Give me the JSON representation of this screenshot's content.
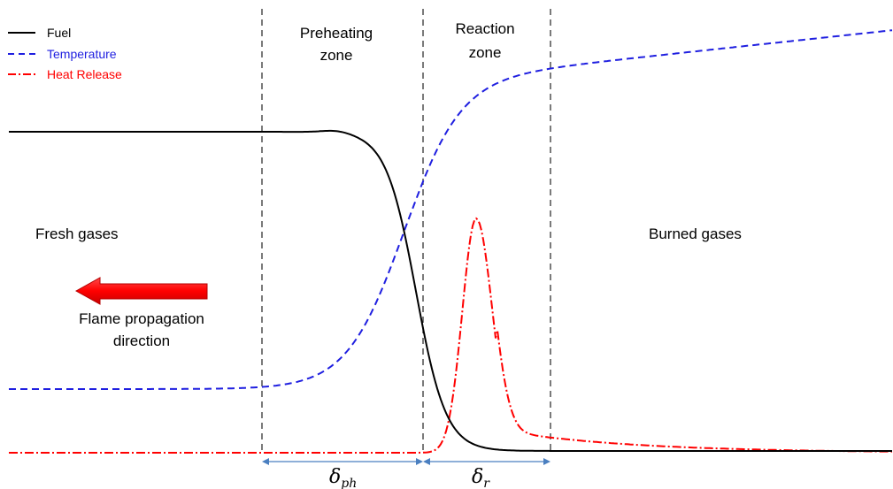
{
  "legend": [
    {
      "label": "Fuel",
      "color": "#000000",
      "style": "solid"
    },
    {
      "label": "Temperature",
      "color": "#1f1fe0",
      "style": "dashed"
    },
    {
      "label": "Heat Release",
      "color": "#ff0000",
      "style": "dash-dot"
    }
  ],
  "zones": {
    "preheating": [
      "Preheating",
      "zone"
    ],
    "reaction": [
      "Reaction",
      "zone"
    ]
  },
  "regions": {
    "fresh": "Fresh gases",
    "burned": "Burned gases"
  },
  "arrow": {
    "color": "#ff0000",
    "label": [
      "Flame propagation",
      "direction"
    ]
  },
  "thickness": {
    "preheat": {
      "symbol": "δ",
      "sub": "ph"
    },
    "reaction": {
      "symbol": "δ",
      "sub": "r"
    },
    "arrow_color": "#4a7fc0"
  },
  "curves": [
    "fuel",
    "temperature",
    "heat_release"
  ]
}
